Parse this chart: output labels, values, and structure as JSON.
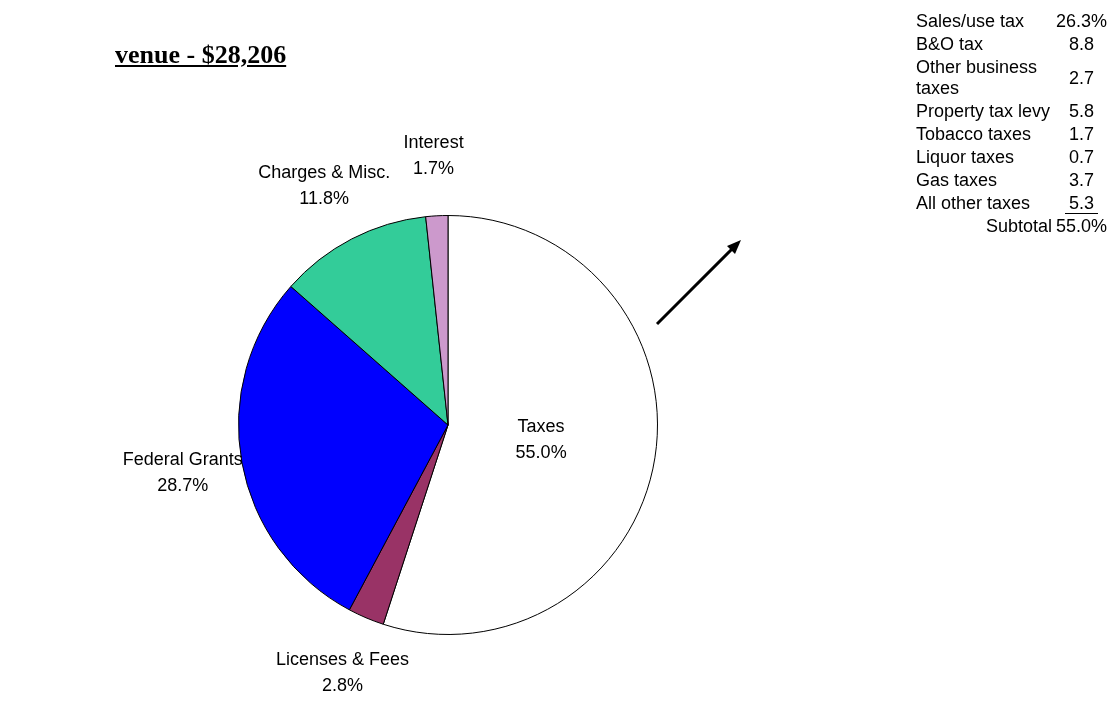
{
  "chart_data": {
    "type": "pie",
    "title": "venue - $28,206",
    "categories": [
      "Taxes",
      "Licenses & Fees",
      "Federal Grants",
      "Charges & Misc.",
      "Interest"
    ],
    "values": [
      55.0,
      2.8,
      28.7,
      11.8,
      1.7
    ],
    "value_labels": [
      "55.0%",
      "2.8%",
      "28.7%",
      "11.8%",
      "1.7%"
    ],
    "colors": [
      "#ffffff",
      "#993366",
      "#0000ff",
      "#33cc99",
      "#cc99cc"
    ],
    "legend": false,
    "annotations": [
      "Sales/use tax",
      "26.3%",
      "B&O tax",
      "8.8",
      "Other business taxes",
      "2.7",
      "Property tax levy",
      "5.8",
      "Tobacco taxes",
      "1.7",
      "Liquor taxes",
      "0.7",
      "Gas taxes",
      "3.7",
      "All other taxes",
      "5.3",
      "Subtotal",
      "55.0%"
    ]
  }
}
